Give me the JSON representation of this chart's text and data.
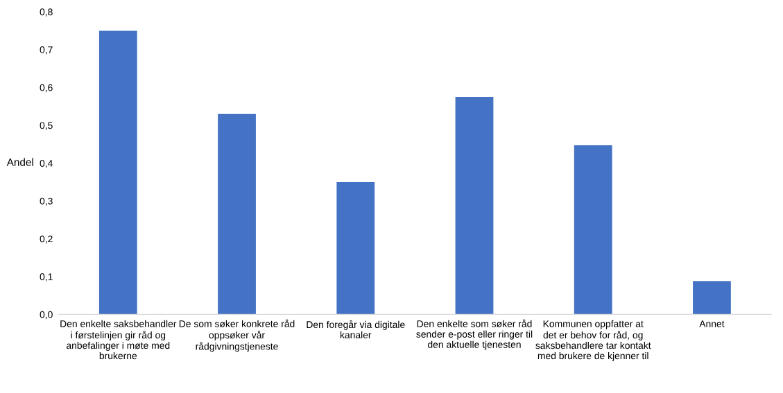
{
  "chart_data": {
    "type": "bar",
    "categories": [
      "Den enkelte saksbehandler\ni førstelinjen gir råd og\nanbefalinger i møte med\nbrukerne",
      "De som søker konkrete råd\noppsøker vår\nrådgivningstjeneste",
      "Den foregår via digitale\nkanaler",
      "Den enkelte som søker råd\nsender e-post eller ringer til\nden aktuelle tjenesten",
      "Kommunen oppfatter at\ndet er behov for råd, og\nsaksbehandlere tar kontakt\nmed brukere de kjenner til",
      "Annet"
    ],
    "values": [
      0.75,
      0.53,
      0.35,
      0.575,
      0.447,
      0.088
    ],
    "color": "#4472c4",
    "ylabel": "Andel",
    "ylim": [
      0,
      0.8
    ],
    "yticks": [
      {
        "value": 0,
        "label": "0,0"
      },
      {
        "value": 0.1,
        "label": "0,1"
      },
      {
        "value": 0.2,
        "label": "0,2"
      },
      {
        "value": 0.3,
        "label": "0,3"
      },
      {
        "value": 0.4,
        "label": "0,4"
      },
      {
        "value": 0.5,
        "label": "0,5"
      },
      {
        "value": 0.6,
        "label": "0,6"
      },
      {
        "value": 0.7,
        "label": "0,7"
      },
      {
        "value": 0.8,
        "label": "0,8"
      }
    ],
    "grid": false
  }
}
